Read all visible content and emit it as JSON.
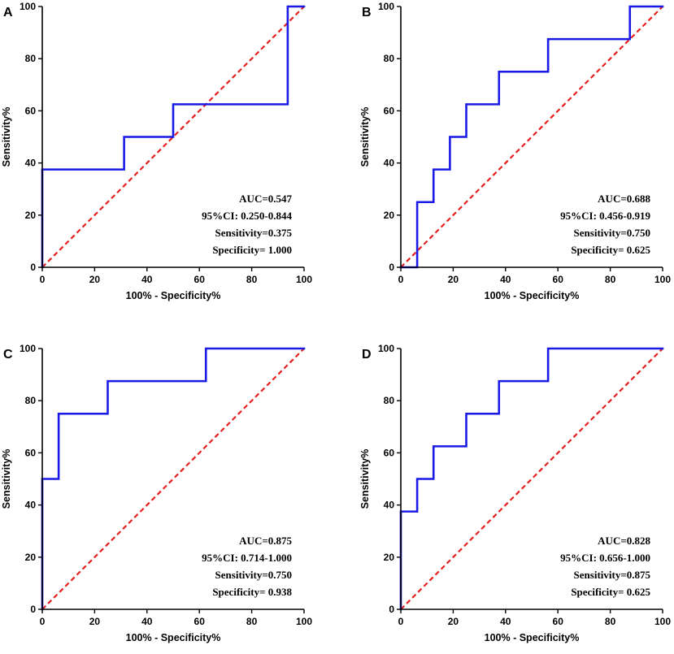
{
  "figure": {
    "x_axis_title": "100% - Specificity%",
    "y_axis_title": "Sensitivity%",
    "line_colors": {
      "roc": "#1a1ae6",
      "reference": "#e61e1e",
      "axis": "#000000"
    }
  },
  "chart_data": [
    {
      "type": "line",
      "panel": "A",
      "title": "",
      "xlabel": "100% - Specificity%",
      "ylabel": "Sensitivity%",
      "xlim": [
        0,
        100
      ],
      "ylim": [
        0,
        100
      ],
      "x_ticks": [
        "0",
        "20",
        "40",
        "60",
        "80",
        "100"
      ],
      "y_ticks": [
        "0",
        "20",
        "40",
        "60",
        "80",
        "100"
      ],
      "series": [
        {
          "name": "ROC",
          "x": [
            0,
            0,
            31.25,
            31.25,
            50,
            50,
            93.75,
            93.75,
            100
          ],
          "y": [
            0,
            37.5,
            37.5,
            50,
            50,
            62.5,
            62.5,
            100,
            100
          ]
        },
        {
          "name": "Reference",
          "x": [
            0,
            100
          ],
          "y": [
            0,
            100
          ]
        }
      ],
      "annotations": [
        "AUC=0.547",
        "95%CI: 0.250-0.844",
        "Sensitivity=0.375",
        "Specificity= 1.000"
      ]
    },
    {
      "type": "line",
      "panel": "B",
      "title": "",
      "xlabel": "100% - Specificity%",
      "ylabel": "Sensitivity%",
      "xlim": [
        0,
        100
      ],
      "ylim": [
        0,
        100
      ],
      "x_ticks": [
        "0",
        "20",
        "40",
        "60",
        "80",
        "100"
      ],
      "y_ticks": [
        "0",
        "20",
        "40",
        "60",
        "80",
        "100"
      ],
      "series": [
        {
          "name": "ROC",
          "x": [
            0,
            6.25,
            6.25,
            12.5,
            12.5,
            18.75,
            18.75,
            25,
            25,
            37.5,
            37.5,
            56.25,
            56.25,
            87.5,
            87.5,
            100
          ],
          "y": [
            0,
            0,
            25,
            25,
            37.5,
            37.5,
            50,
            50,
            62.5,
            62.5,
            75,
            75,
            87.5,
            87.5,
            100,
            100
          ]
        },
        {
          "name": "Reference",
          "x": [
            0,
            100
          ],
          "y": [
            0,
            100
          ]
        }
      ],
      "annotations": [
        "AUC=0.688",
        "95%CI: 0.456-0.919",
        "Sensitivity=0.750",
        "Specificity= 0.625"
      ]
    },
    {
      "type": "line",
      "panel": "C",
      "title": "",
      "xlabel": "100% - Specificity%",
      "ylabel": "Sensitivity%",
      "xlim": [
        0,
        100
      ],
      "ylim": [
        0,
        100
      ],
      "x_ticks": [
        "0",
        "20",
        "40",
        "60",
        "80",
        "100"
      ],
      "y_ticks": [
        "0",
        "20",
        "40",
        "60",
        "80",
        "100"
      ],
      "series": [
        {
          "name": "ROC",
          "x": [
            0,
            0,
            6.25,
            6.25,
            25,
            25,
            62.5,
            62.5,
            100
          ],
          "y": [
            0,
            50,
            50,
            75,
            75,
            87.5,
            87.5,
            100,
            100
          ]
        },
        {
          "name": "Reference",
          "x": [
            0,
            100
          ],
          "y": [
            0,
            100
          ]
        }
      ],
      "annotations": [
        "AUC=0.875",
        "95%CI: 0.714-1.000",
        "Sensitivity=0.750",
        "Specificity= 0.938"
      ]
    },
    {
      "type": "line",
      "panel": "D",
      "title": "",
      "xlabel": "100% - Specificity%",
      "ylabel": "Sensitivity%",
      "xlim": [
        0,
        100
      ],
      "ylim": [
        0,
        100
      ],
      "x_ticks": [
        "0",
        "20",
        "40",
        "60",
        "80",
        "100"
      ],
      "y_ticks": [
        "0",
        "20",
        "40",
        "60",
        "80",
        "100"
      ],
      "series": [
        {
          "name": "ROC",
          "x": [
            0,
            0,
            6.25,
            6.25,
            12.5,
            12.5,
            25,
            25,
            37.5,
            37.5,
            56.25,
            56.25,
            100
          ],
          "y": [
            0,
            37.5,
            37.5,
            50,
            50,
            62.5,
            62.5,
            75,
            75,
            87.5,
            87.5,
            100,
            100
          ]
        },
        {
          "name": "Reference",
          "x": [
            0,
            100
          ],
          "y": [
            0,
            100
          ]
        }
      ],
      "annotations": [
        "AUC=0.828",
        "95%CI: 0.656-1.000",
        "Sensitivity=0.875",
        "Specificity= 0.625"
      ]
    }
  ]
}
